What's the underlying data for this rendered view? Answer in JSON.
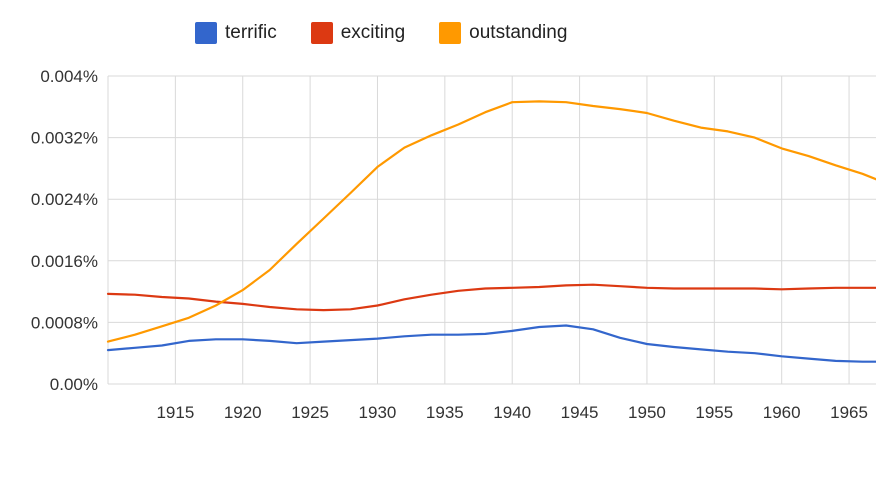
{
  "chart_data": {
    "type": "line",
    "title": "",
    "xlabel": "",
    "ylabel": "",
    "xlim": [
      1910,
      1967
    ],
    "ylim": [
      0,
      0.004
    ],
    "grid": true,
    "legend": "top",
    "x_ticks": [
      1915,
      1920,
      1925,
      1930,
      1935,
      1940,
      1945,
      1950,
      1955,
      1960,
      1965
    ],
    "x_tick_labels": [
      "1915",
      "1920",
      "1925",
      "1930",
      "1935",
      "1940",
      "1945",
      "1950",
      "1955",
      "1960",
      "1965"
    ],
    "y_ticks": [
      0,
      0.0008,
      0.0016,
      0.0024,
      0.0032,
      0.004
    ],
    "y_tick_labels": [
      "0.00%",
      "0.0008%",
      "0.0016%",
      "0.0024%",
      "0.0032%",
      "0.004%"
    ],
    "x": [
      1910,
      1912,
      1914,
      1916,
      1918,
      1920,
      1922,
      1924,
      1926,
      1928,
      1930,
      1932,
      1934,
      1936,
      1938,
      1940,
      1942,
      1944,
      1946,
      1948,
      1950,
      1952,
      1954,
      1956,
      1958,
      1960,
      1962,
      1964,
      1966,
      1967
    ],
    "series": [
      {
        "name": "terrific",
        "color": "#3366cc",
        "values": [
          0.00044,
          0.00047,
          0.0005,
          0.00056,
          0.00058,
          0.00058,
          0.00056,
          0.00053,
          0.00055,
          0.00057,
          0.00059,
          0.00062,
          0.00064,
          0.00064,
          0.00065,
          0.00069,
          0.00074,
          0.00076,
          0.00071,
          0.0006,
          0.00052,
          0.00048,
          0.00045,
          0.00042,
          0.0004,
          0.00036,
          0.00033,
          0.0003,
          0.00029,
          0.00029
        ]
      },
      {
        "name": "exciting",
        "color": "#dc3912",
        "values": [
          0.00117,
          0.00116,
          0.00113,
          0.00111,
          0.00107,
          0.00104,
          0.001,
          0.00097,
          0.00096,
          0.00097,
          0.00102,
          0.0011,
          0.00116,
          0.00121,
          0.00124,
          0.00125,
          0.00126,
          0.00128,
          0.00129,
          0.00127,
          0.00125,
          0.00124,
          0.00124,
          0.00124,
          0.00124,
          0.00123,
          0.00124,
          0.00125,
          0.00125,
          0.00125
        ]
      },
      {
        "name": "outstanding",
        "color": "#ff9900",
        "values": [
          0.00055,
          0.00064,
          0.00075,
          0.00086,
          0.00102,
          0.00122,
          0.00148,
          0.00182,
          0.00215,
          0.00248,
          0.00282,
          0.00307,
          0.00323,
          0.00337,
          0.00353,
          0.00366,
          0.00367,
          0.00366,
          0.00361,
          0.00357,
          0.00352,
          0.00342,
          0.00333,
          0.00328,
          0.0032,
          0.00306,
          0.00296,
          0.00284,
          0.00273,
          0.00266
        ]
      }
    ]
  }
}
